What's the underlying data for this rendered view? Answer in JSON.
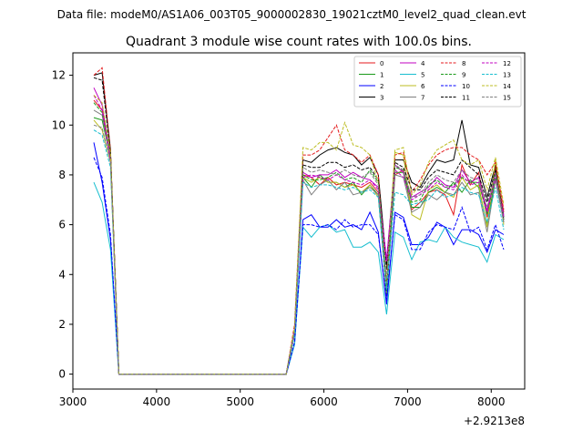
{
  "suptitle": "Data file: modeM0/AS1A06_003T05_9000002830_19021cztM0_level2_quad_clean.evt",
  "chart_data": {
    "type": "line",
    "title": "Quadrant 3 module wise count rates with 100.0s bins.",
    "xlabel": "",
    "ylabel": "",
    "x_offset_label": "+2.9213e8",
    "xlim": [
      3000,
      8400
    ],
    "ylim": [
      -0.6,
      12.9
    ],
    "xticks": [
      3000,
      4000,
      5000,
      6000,
      7000,
      8000
    ],
    "yticks": [
      0,
      2,
      4,
      6,
      8,
      10,
      12
    ],
    "grid": false,
    "legend": {
      "position": "top-right",
      "columns": 4
    },
    "x": [
      3250,
      3350,
      3450,
      3550,
      3650,
      3750,
      3850,
      3950,
      4050,
      4150,
      4250,
      4350,
      4450,
      4550,
      4650,
      4750,
      4850,
      4950,
      5050,
      5150,
      5250,
      5350,
      5450,
      5550,
      5650,
      5750,
      5850,
      5950,
      6050,
      6150,
      6250,
      6350,
      6450,
      6550,
      6650,
      6750,
      6850,
      6950,
      7050,
      7150,
      7250,
      7350,
      7450,
      7550,
      7650,
      7750,
      7850,
      7950,
      8050,
      8150
    ],
    "series": [
      {
        "name": "0",
        "color": "#e41a1c",
        "dashed": false,
        "values": [
          11.0,
          10.6,
          8.8,
          0,
          0,
          0,
          0,
          0,
          0,
          0,
          0,
          0,
          0,
          0,
          0,
          0,
          0,
          0,
          0,
          0,
          0,
          0,
          0,
          0,
          1.6,
          8.0,
          7.9,
          7.6,
          7.9,
          7.6,
          7.7,
          7.6,
          7.5,
          7.7,
          7.3,
          3.2,
          8.0,
          8.2,
          6.6,
          6.9,
          7.3,
          7.4,
          7.2,
          6.4,
          8.4,
          7.6,
          8.1,
          6.3,
          8.3,
          6.5
        ]
      },
      {
        "name": "1",
        "color": "#1a9a1a",
        "dashed": false,
        "values": [
          10.3,
          10.2,
          8.7,
          0,
          0,
          0,
          0,
          0,
          0,
          0,
          0,
          0,
          0,
          0,
          0,
          0,
          0,
          0,
          0,
          0,
          0,
          0,
          0,
          0,
          1.7,
          7.9,
          7.5,
          8.0,
          7.7,
          7.7,
          7.5,
          7.7,
          7.2,
          7.6,
          7.2,
          3.4,
          8.1,
          8.1,
          6.7,
          6.7,
          7.3,
          7.5,
          7.3,
          7.7,
          7.3,
          7.8,
          7.5,
          6.0,
          7.9,
          6.2
        ]
      },
      {
        "name": "2",
        "color": "#0000ff",
        "dashed": false,
        "values": [
          9.3,
          7.7,
          5.4,
          0,
          0,
          0,
          0,
          0,
          0,
          0,
          0,
          0,
          0,
          0,
          0,
          0,
          0,
          0,
          0,
          0,
          0,
          0,
          0,
          0,
          1.2,
          6.2,
          6.4,
          5.9,
          5.9,
          6.2,
          5.9,
          6.0,
          5.8,
          6.5,
          5.7,
          2.8,
          6.5,
          6.3,
          5.2,
          5.2,
          5.5,
          6.1,
          5.9,
          5.2,
          5.8,
          5.8,
          5.6,
          4.9,
          5.8,
          5.6
        ]
      },
      {
        "name": "3",
        "color": "#000000",
        "dashed": false,
        "values": [
          12.0,
          12.1,
          9.0,
          0,
          0,
          0,
          0,
          0,
          0,
          0,
          0,
          0,
          0,
          0,
          0,
          0,
          0,
          0,
          0,
          0,
          0,
          0,
          0,
          0,
          1.8,
          8.6,
          8.5,
          8.8,
          9.0,
          9.1,
          8.9,
          8.8,
          8.4,
          8.7,
          8.0,
          4.4,
          8.6,
          8.6,
          7.7,
          7.5,
          8.1,
          8.6,
          8.5,
          8.6,
          10.2,
          8.4,
          8.3,
          7.1,
          8.4,
          6.3
        ]
      },
      {
        "name": "4",
        "color": "#c000c0",
        "dashed": false,
        "values": [
          11.5,
          10.8,
          8.7,
          0,
          0,
          0,
          0,
          0,
          0,
          0,
          0,
          0,
          0,
          0,
          0,
          0,
          0,
          0,
          0,
          0,
          0,
          0,
          0,
          0,
          1.8,
          8.1,
          7.9,
          8.0,
          8.0,
          8.2,
          7.9,
          8.1,
          7.9,
          7.8,
          7.5,
          4.6,
          8.4,
          8.1,
          7.1,
          7.3,
          7.5,
          7.9,
          7.6,
          7.5,
          8.2,
          7.7,
          7.9,
          6.6,
          8.1,
          6.4
        ]
      },
      {
        "name": "5",
        "color": "#17becf",
        "dashed": false,
        "values": [
          7.7,
          6.9,
          5.0,
          0,
          0,
          0,
          0,
          0,
          0,
          0,
          0,
          0,
          0,
          0,
          0,
          0,
          0,
          0,
          0,
          0,
          0,
          0,
          0,
          0,
          1.2,
          5.9,
          5.5,
          5.9,
          6.0,
          5.7,
          5.8,
          5.1,
          5.1,
          5.3,
          4.9,
          2.4,
          5.7,
          5.5,
          4.6,
          5.3,
          5.4,
          5.3,
          5.9,
          5.5,
          5.3,
          5.2,
          5.1,
          4.5,
          5.6,
          5.4
        ]
      },
      {
        "name": "6",
        "color": "#bcbd22",
        "dashed": false,
        "values": [
          10.2,
          9.8,
          8.5,
          0,
          0,
          0,
          0,
          0,
          0,
          0,
          0,
          0,
          0,
          0,
          0,
          0,
          0,
          0,
          0,
          0,
          0,
          0,
          0,
          0,
          1.7,
          7.9,
          7.7,
          7.9,
          7.7,
          7.7,
          7.5,
          7.6,
          7.3,
          7.6,
          7.1,
          3.6,
          8.9,
          8.8,
          6.4,
          6.2,
          7.4,
          7.6,
          7.3,
          7.1,
          7.9,
          7.4,
          7.6,
          5.9,
          8.6,
          6.0
        ]
      },
      {
        "name": "7",
        "color": "#7f7f7f",
        "dashed": false,
        "values": [
          10.6,
          10.4,
          8.6,
          0,
          0,
          0,
          0,
          0,
          0,
          0,
          0,
          0,
          0,
          0,
          0,
          0,
          0,
          0,
          0,
          0,
          0,
          0,
          0,
          0,
          1.6,
          7.8,
          7.2,
          7.6,
          7.8,
          7.4,
          7.7,
          7.2,
          7.3,
          7.5,
          7.2,
          3.1,
          8.0,
          7.9,
          6.5,
          6.7,
          7.2,
          7.0,
          7.3,
          7.2,
          7.7,
          7.2,
          7.3,
          5.7,
          7.8,
          6.1
        ]
      },
      {
        "name": "8",
        "color": "#e41a1c",
        "dashed": true,
        "values": [
          12.0,
          12.3,
          9.0,
          0,
          0,
          0,
          0,
          0,
          0,
          0,
          0,
          0,
          0,
          0,
          0,
          0,
          0,
          0,
          0,
          0,
          0,
          0,
          0,
          0,
          2.0,
          8.8,
          8.8,
          9.0,
          9.5,
          10.0,
          9.0,
          8.8,
          8.5,
          8.8,
          8.0,
          3.5,
          8.8,
          8.9,
          7.3,
          7.8,
          8.4,
          8.8,
          9.0,
          9.1,
          9.1,
          8.8,
          8.6,
          8.0,
          8.5,
          6.6
        ]
      },
      {
        "name": "9",
        "color": "#1a9a1a",
        "dashed": true,
        "values": [
          10.9,
          10.5,
          8.8,
          0,
          0,
          0,
          0,
          0,
          0,
          0,
          0,
          0,
          0,
          0,
          0,
          0,
          0,
          0,
          0,
          0,
          0,
          0,
          0,
          0,
          1.7,
          8.0,
          7.8,
          7.8,
          7.9,
          8.1,
          7.8,
          7.9,
          7.7,
          8.2,
          7.7,
          3.2,
          8.3,
          8.2,
          6.9,
          7.0,
          7.6,
          7.8,
          7.5,
          7.6,
          7.9,
          7.7,
          7.7,
          6.4,
          8.0,
          6.3
        ]
      },
      {
        "name": "10",
        "color": "#0000ff",
        "dashed": true,
        "values": [
          8.7,
          7.9,
          5.6,
          0,
          0,
          0,
          0,
          0,
          0,
          0,
          0,
          0,
          0,
          0,
          0,
          0,
          0,
          0,
          0,
          0,
          0,
          0,
          0,
          0,
          1.3,
          6.0,
          6.0,
          5.9,
          6.0,
          5.8,
          6.2,
          5.9,
          6.0,
          6.0,
          5.6,
          3.0,
          6.4,
          6.2,
          5.0,
          5.0,
          5.7,
          6.0,
          5.9,
          5.8,
          6.7,
          5.7,
          5.9,
          5.0,
          6.0,
          5.0
        ]
      },
      {
        "name": "11",
        "color": "#000000",
        "dashed": true,
        "values": [
          11.9,
          11.8,
          8.9,
          0,
          0,
          0,
          0,
          0,
          0,
          0,
          0,
          0,
          0,
          0,
          0,
          0,
          0,
          0,
          0,
          0,
          0,
          0,
          0,
          0,
          1.8,
          8.4,
          8.3,
          8.3,
          8.5,
          8.5,
          8.3,
          8.4,
          8.2,
          8.3,
          7.8,
          4.2,
          8.5,
          8.3,
          7.4,
          7.4,
          7.9,
          8.2,
          8.1,
          8.0,
          8.6,
          8.3,
          8.0,
          6.9,
          8.2,
          6.2
        ]
      },
      {
        "name": "12",
        "color": "#c000c0",
        "dashed": true,
        "values": [
          11.2,
          10.6,
          8.6,
          0,
          0,
          0,
          0,
          0,
          0,
          0,
          0,
          0,
          0,
          0,
          0,
          0,
          0,
          0,
          0,
          0,
          0,
          0,
          0,
          0,
          1.8,
          7.9,
          8.0,
          7.9,
          7.8,
          8.0,
          7.8,
          7.7,
          7.6,
          7.8,
          7.4,
          4.5,
          8.2,
          7.9,
          7.0,
          7.2,
          7.4,
          7.7,
          7.5,
          7.4,
          8.0,
          7.6,
          7.7,
          6.5,
          7.9,
          6.3
        ]
      },
      {
        "name": "13",
        "color": "#17becf",
        "dashed": true,
        "values": [
          9.8,
          9.6,
          8.3,
          0,
          0,
          0,
          0,
          0,
          0,
          0,
          0,
          0,
          0,
          0,
          0,
          0,
          0,
          0,
          0,
          0,
          0,
          0,
          0,
          0,
          1.6,
          7.7,
          7.5,
          7.6,
          7.6,
          7.5,
          7.4,
          7.5,
          7.3,
          7.4,
          7.1,
          3.4,
          7.3,
          7.2,
          6.8,
          6.9,
          7.0,
          7.4,
          7.1,
          7.2,
          7.5,
          7.3,
          7.2,
          6.1,
          7.5,
          5.8
        ]
      },
      {
        "name": "14",
        "color": "#bcbd22",
        "dashed": true,
        "values": [
          11.2,
          10.9,
          8.9,
          0,
          0,
          0,
          0,
          0,
          0,
          0,
          0,
          0,
          0,
          0,
          0,
          0,
          0,
          0,
          0,
          0,
          0,
          0,
          0,
          0,
          1.9,
          9.1,
          9.0,
          9.3,
          9.3,
          9.0,
          10.1,
          9.2,
          9.1,
          8.8,
          7.7,
          3.8,
          9.0,
          9.1,
          7.2,
          7.6,
          8.5,
          9.0,
          9.2,
          9.4,
          8.6,
          8.4,
          8.6,
          7.4,
          8.7,
          6.8
        ]
      },
      {
        "name": "15",
        "color": "#7f7f7f",
        "dashed": true,
        "values": [
          10.0,
          9.9,
          8.5,
          0,
          0,
          0,
          0,
          0,
          0,
          0,
          0,
          0,
          0,
          0,
          0,
          0,
          0,
          0,
          0,
          0,
          0,
          0,
          0,
          0,
          1.7,
          8.3,
          8.1,
          8.2,
          8.1,
          8.0,
          8.2,
          8.0,
          7.9,
          8.1,
          7.6,
          3.8,
          8.4,
          8.2,
          7.1,
          7.2,
          7.7,
          8.0,
          7.8,
          7.7,
          8.2,
          7.9,
          7.8,
          6.7,
          8.1,
          6.1
        ]
      }
    ]
  }
}
